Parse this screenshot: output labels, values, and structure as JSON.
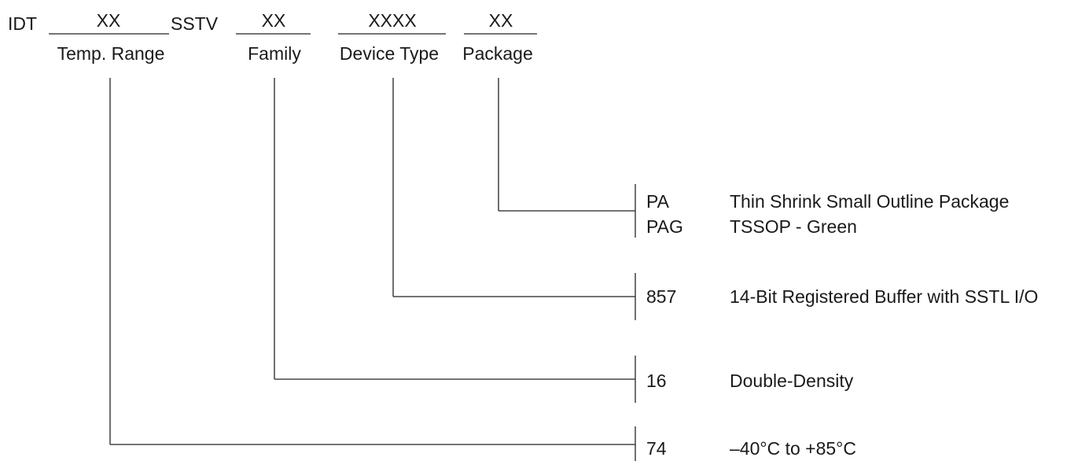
{
  "header": {
    "prefix": "IDT",
    "temp_range_code": "XX",
    "family_prefix": "SSTV",
    "family_code": "XX",
    "device_type_code": "XXXX",
    "package_code": "XX"
  },
  "field_labels": {
    "temp_range": "Temp. Range",
    "family": "Family",
    "device_type": "Device Type",
    "package": "Package"
  },
  "options": {
    "package": [
      {
        "code": "PA",
        "description": "Thin Shrink Small Outline Package"
      },
      {
        "code": "PAG",
        "description": "TSSOP - Green"
      }
    ],
    "device_type": [
      {
        "code": "857",
        "description": "14-Bit Registered Buffer with SSTL I/O"
      }
    ],
    "family": [
      {
        "code": "16",
        "description": "Double-Density"
      }
    ],
    "temp_range": [
      {
        "code": "74",
        "description": "–40°C to +85°C"
      }
    ]
  }
}
